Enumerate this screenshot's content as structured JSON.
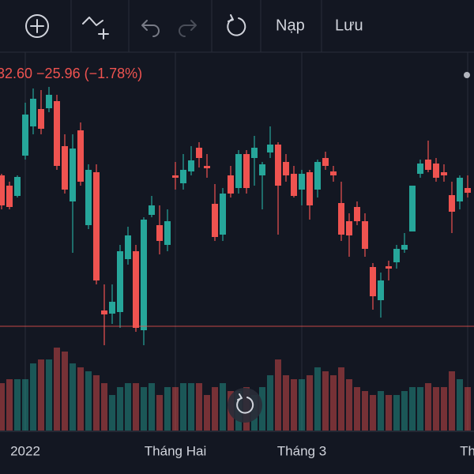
{
  "toolbar": {
    "buttons": [
      "Nạp",
      "Lưu"
    ]
  },
  "chart_data": {
    "type": "candlestick",
    "legend_text": "32.60 −25.96 (−1.78%)",
    "open": [
      248,
      235,
      222,
      273,
      310,
      332,
      333,
      342,
      285,
      215,
      305,
      185,
      252,
      77,
      73,
      75,
      142,
      152,
      52,
      198,
      185,
      160,
      248,
      238,
      253,
      283,
      260,
      212,
      173,
      248,
      232,
      275,
      270,
      248,
      277,
      287,
      265,
      250,
      230,
      252,
      230,
      270,
      253,
      213,
      190,
      208,
      190,
      132,
      90,
      133,
      138,
      154,
      177,
      250,
      268,
      263,
      252,
      223,
      215,
      232
    ],
    "high": [
      250,
      240,
      248,
      340,
      358,
      356,
      360,
      350,
      300,
      300,
      315,
      262,
      262,
      110,
      110,
      160,
      183,
      160,
      195,
      222,
      210,
      205,
      265,
      275,
      285,
      290,
      275,
      237,
      232,
      260,
      280,
      280,
      298,
      265,
      310,
      290,
      275,
      260,
      255,
      255,
      268,
      278,
      260,
      240,
      200,
      215,
      200,
      137,
      125,
      140,
      160,
      175,
      235,
      268,
      292,
      270,
      262,
      240,
      248,
      248
    ],
    "low": [
      205,
      205,
      220,
      268,
      300,
      300,
      328,
      255,
      225,
      150,
      235,
      180,
      110,
      33,
      60,
      55,
      135,
      50,
      33,
      195,
      148,
      152,
      230,
      230,
      248,
      258,
      245,
      165,
      165,
      220,
      225,
      225,
      235,
      205,
      270,
      173,
      240,
      220,
      210,
      192,
      220,
      255,
      240,
      165,
      145,
      185,
      145,
      78,
      68,
      115,
      130,
      150,
      177,
      245,
      252,
      240,
      240,
      175,
      205,
      220
    ],
    "close": [
      210,
      208,
      246,
      325,
      345,
      307,
      350,
      260,
      230,
      282,
      240,
      255,
      115,
      72,
      88,
      152,
      172,
      55,
      192,
      210,
      165,
      190,
      245,
      255,
      267,
      270,
      257,
      170,
      225,
      225,
      275,
      232,
      283,
      262,
      287,
      235,
      248,
      222,
      250,
      210,
      265,
      260,
      248,
      173,
      172,
      190,
      155,
      95,
      115,
      130,
      155,
      160,
      235,
      263,
      255,
      245,
      248,
      202,
      245,
      226
    ],
    "volume": [
      60,
      65,
      65,
      65,
      85,
      90,
      90,
      105,
      100,
      85,
      80,
      75,
      70,
      60,
      45,
      55,
      60,
      60,
      55,
      60,
      45,
      55,
      55,
      60,
      60,
      60,
      45,
      55,
      60,
      50,
      50,
      55,
      45,
      55,
      70,
      90,
      70,
      65,
      65,
      70,
      80,
      75,
      70,
      80,
      65,
      55,
      50,
      45,
      50,
      45,
      45,
      50,
      55,
      55,
      60,
      55,
      55,
      75,
      65,
      55
    ],
    "xlim": [
      -0.2,
      59.8
    ],
    "ylim": [
      0,
      400
    ],
    "y2lim": [
      0,
      120
    ],
    "xticks": [
      {
        "value": 3,
        "label": "2022"
      },
      {
        "value": 22,
        "label": "Tháng Hai"
      },
      {
        "value": 38,
        "label": "Tháng 3"
      },
      {
        "value": 59,
        "label": "Th"
      }
    ],
    "up_color": "#26a69a",
    "down_color": "#ef5350",
    "price_line": 57,
    "price_line_color": "#ef5350"
  }
}
